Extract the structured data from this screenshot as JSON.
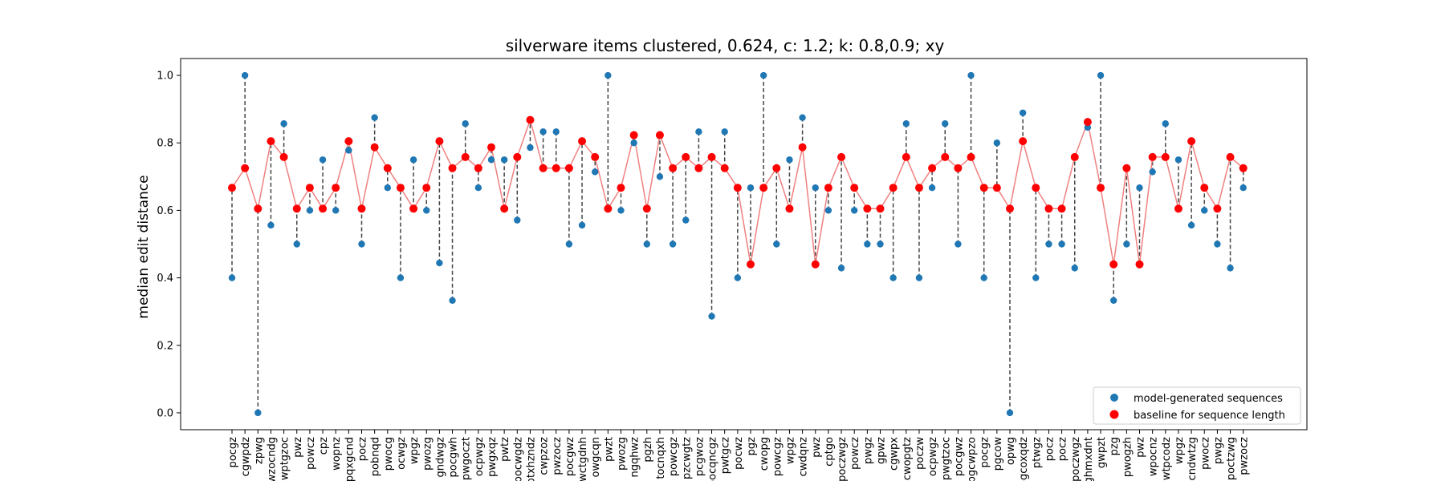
{
  "chart_data": {
    "type": "scatter",
    "title": "silverware items clustered, 0.624, c: 1.2; k: 0.8,0.9; xy",
    "xlabel": "",
    "ylabel": "median edit distance",
    "ylim": [
      -0.05,
      1.05
    ],
    "yticks": [
      "0.0",
      "0.2",
      "0.4",
      "0.6",
      "0.8",
      "1.0"
    ],
    "grid": false,
    "legend_position": "lower-right",
    "colors": {
      "model": "#1f77b4",
      "baseline": "#ff0000",
      "baseline_line": "#f08080",
      "connector": "#444444"
    },
    "categories": [
      "pocgz",
      "cgwpdz",
      "zpwg",
      "wzocndg",
      "wptgzoc",
      "pwz",
      "powcz",
      "cpz",
      "wopnz",
      "pqxgcnd",
      "pocz",
      "pobnqd",
      "pwocg",
      "ocwgz",
      "wpgz",
      "pwozg",
      "gndwgz",
      "pocgwh",
      "cpwgoczt",
      "ocpwgz",
      "pwgxqz",
      "pwtz",
      "pocwgdz",
      "ptxhzndz",
      "cwpzoz",
      "pwzocz",
      "pocgwz",
      "wctgdnh",
      "owgcqn",
      "pwzt",
      "pwozg",
      "ngqhwz",
      "pgzh",
      "tocnqxh",
      "powcgz",
      "pzcwgtz",
      "pcgwoz",
      "pocqncgz",
      "pwtgcz",
      "pocwz",
      "pgz",
      "cwopg",
      "powcgz",
      "wpgz",
      "cwdqnz",
      "pwz",
      "cptgo",
      "poczwgz",
      "powcz",
      "pwgz",
      "gpwz",
      "cgwpx",
      "cwopgtz",
      "poczw",
      "ocpwgz",
      "pwgtzoc",
      "pocgwz",
      "pgcwpzo",
      "pocgz",
      "pgcow",
      "opwg",
      "pgcoxqdz",
      "ptwgz",
      "pocz",
      "pocz",
      "poczwgz",
      "ghmxdnt",
      "gwpzt",
      "pzg",
      "pwogzh",
      "pwz",
      "wpocnz",
      "wtpcodz",
      "wpgz",
      "cndwtzg",
      "pwocz",
      "pwgz",
      "poctzwg",
      "pwzocz"
    ],
    "series": [
      {
        "name": "model-generated sequences",
        "values": [
          0.4,
          1.0,
          0.0,
          0.556,
          0.857,
          0.5,
          0.6,
          0.75,
          0.6,
          0.778,
          0.5,
          0.875,
          0.667,
          0.4,
          0.75,
          0.6,
          0.444,
          0.333,
          0.857,
          0.667,
          0.75,
          0.75,
          0.571,
          0.786,
          0.833,
          0.833,
          0.5,
          0.556,
          0.714,
          1.0,
          0.6,
          0.8,
          0.5,
          0.7,
          0.5,
          0.571,
          0.833,
          0.286,
          0.833,
          0.4,
          0.667,
          1.0,
          0.5,
          0.75,
          0.875,
          0.667,
          0.6,
          0.429,
          0.6,
          0.5,
          0.5,
          0.4,
          0.857,
          0.4,
          0.667,
          0.857,
          0.5,
          1.0,
          0.4,
          0.8,
          0.0,
          0.889,
          0.4,
          0.5,
          0.5,
          0.429,
          0.846,
          1.0,
          0.333,
          0.5,
          0.667,
          0.714,
          0.857,
          0.75,
          0.556,
          0.6,
          0.5,
          0.429,
          0.667
        ]
      },
      {
        "name": "baseline for sequence length",
        "values": [
          0.667,
          0.725,
          0.605,
          0.805,
          0.758,
          0.605,
          0.667,
          0.605,
          0.667,
          0.805,
          0.605,
          0.787,
          0.725,
          0.667,
          0.605,
          0.667,
          0.805,
          0.725,
          0.758,
          0.725,
          0.787,
          0.605,
          0.758,
          0.868,
          0.725,
          0.725,
          0.725,
          0.805,
          0.758,
          0.605,
          0.667,
          0.823,
          0.605,
          0.823,
          0.725,
          0.758,
          0.725,
          0.758,
          0.725,
          0.667,
          0.44,
          0.667,
          0.725,
          0.605,
          0.787,
          0.44,
          0.667,
          0.758,
          0.667,
          0.605,
          0.605,
          0.667,
          0.758,
          0.667,
          0.725,
          0.758,
          0.725,
          0.758,
          0.667,
          0.667,
          0.605,
          0.805,
          0.667,
          0.605,
          0.605,
          0.758,
          0.862,
          0.667,
          0.44,
          0.725,
          0.44,
          0.758,
          0.758,
          0.605,
          0.805,
          0.667,
          0.605,
          0.758,
          0.725
        ]
      }
    ]
  }
}
